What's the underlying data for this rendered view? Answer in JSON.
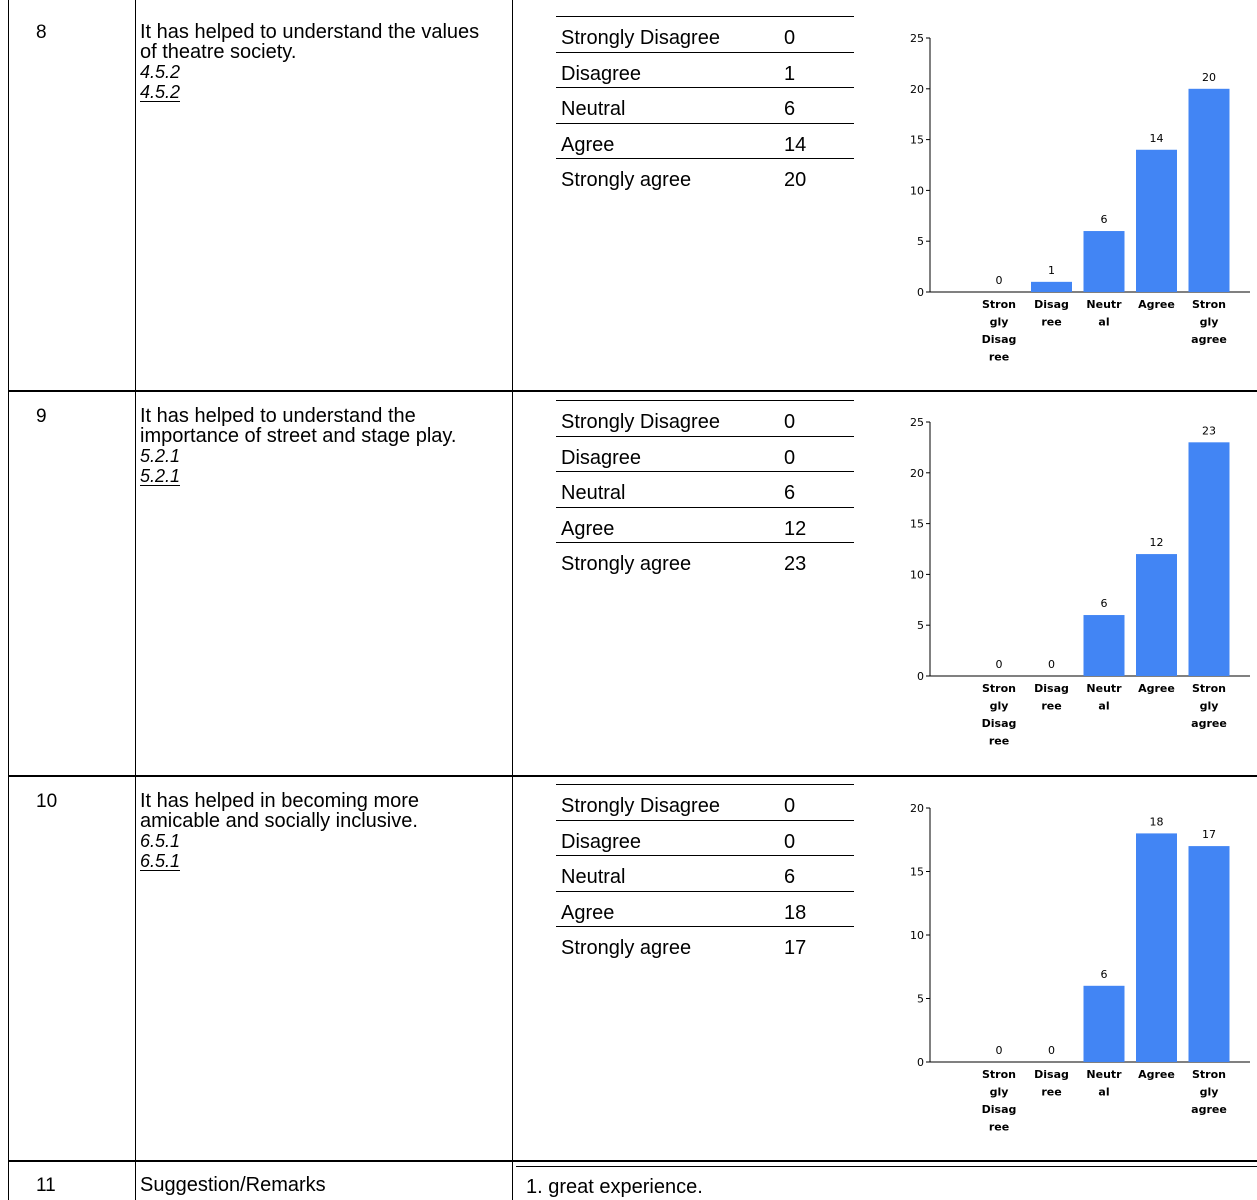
{
  "categories_full": [
    "Strongly Disagree",
    "Disagree",
    "Neutral",
    "Agree",
    "Strongly agree"
  ],
  "chart_category_lines": [
    [
      "Stron",
      "gly",
      "Disag",
      "ree"
    ],
    [
      "Disag",
      "ree"
    ],
    [
      "Neutr",
      "al"
    ],
    [
      "Agree"
    ],
    [
      "Stron",
      "gly",
      "agree"
    ]
  ],
  "rows": [
    {
      "number": "8",
      "question": "It has helped to understand the values of theatre society.",
      "reference": "4.5.2",
      "responses": [
        {
          "label": "Strongly Disagree",
          "count": "0"
        },
        {
          "label": "Disagree",
          "count": "1"
        },
        {
          "label": "Neutral",
          "count": "6"
        },
        {
          "label": "Agree",
          "count": "14"
        },
        {
          "label": "Strongly agree",
          "count": "20"
        }
      ]
    },
    {
      "number": "9",
      "question": "It has helped to understand the importance of street and stage play.",
      "reference": "5.2.1",
      "responses": [
        {
          "label": "Strongly Disagree",
          "count": "0"
        },
        {
          "label": "Disagree",
          "count": "0"
        },
        {
          "label": "Neutral",
          "count": "6"
        },
        {
          "label": "Agree",
          "count": "12"
        },
        {
          "label": "Strongly agree",
          "count": "23"
        }
      ]
    },
    {
      "number": "10",
      "question": "It has helped in becoming more amicable and socially inclusive.",
      "reference": "6.5.1",
      "responses": [
        {
          "label": "Strongly Disagree",
          "count": "0"
        },
        {
          "label": "Disagree",
          "count": "0"
        },
        {
          "label": "Neutral",
          "count": "6"
        },
        {
          "label": "Agree",
          "count": "18"
        },
        {
          "label": "Strongly agree",
          "count": "17"
        }
      ]
    },
    {
      "number": "11",
      "question": "Suggestion/Remarks",
      "remark": "1. great experience."
    }
  ],
  "chart_data": [
    {
      "type": "bar",
      "categories": [
        "Strongly Disagree",
        "Disagree",
        "Neutral",
        "Agree",
        "Strongly agree"
      ],
      "values": [
        0,
        1,
        6,
        14,
        20
      ],
      "ylim": [
        0,
        25
      ],
      "yticks": [
        0,
        5,
        10,
        15,
        20,
        25
      ],
      "bar_color": "#4285f4",
      "grid": false
    },
    {
      "type": "bar",
      "categories": [
        "Strongly Disagree",
        "Disagree",
        "Neutral",
        "Agree",
        "Strongly agree"
      ],
      "values": [
        0,
        0,
        6,
        12,
        23
      ],
      "ylim": [
        0,
        25
      ],
      "yticks": [
        0,
        5,
        10,
        15,
        20,
        25
      ],
      "bar_color": "#4285f4",
      "grid": false
    },
    {
      "type": "bar",
      "categories": [
        "Strongly Disagree",
        "Disagree",
        "Neutral",
        "Agree",
        "Strongly agree"
      ],
      "values": [
        0,
        0,
        6,
        18,
        17
      ],
      "ylim": [
        0,
        20
      ],
      "yticks": [
        0,
        5,
        10,
        15,
        20
      ],
      "bar_color": "#4285f4",
      "grid": false
    }
  ]
}
